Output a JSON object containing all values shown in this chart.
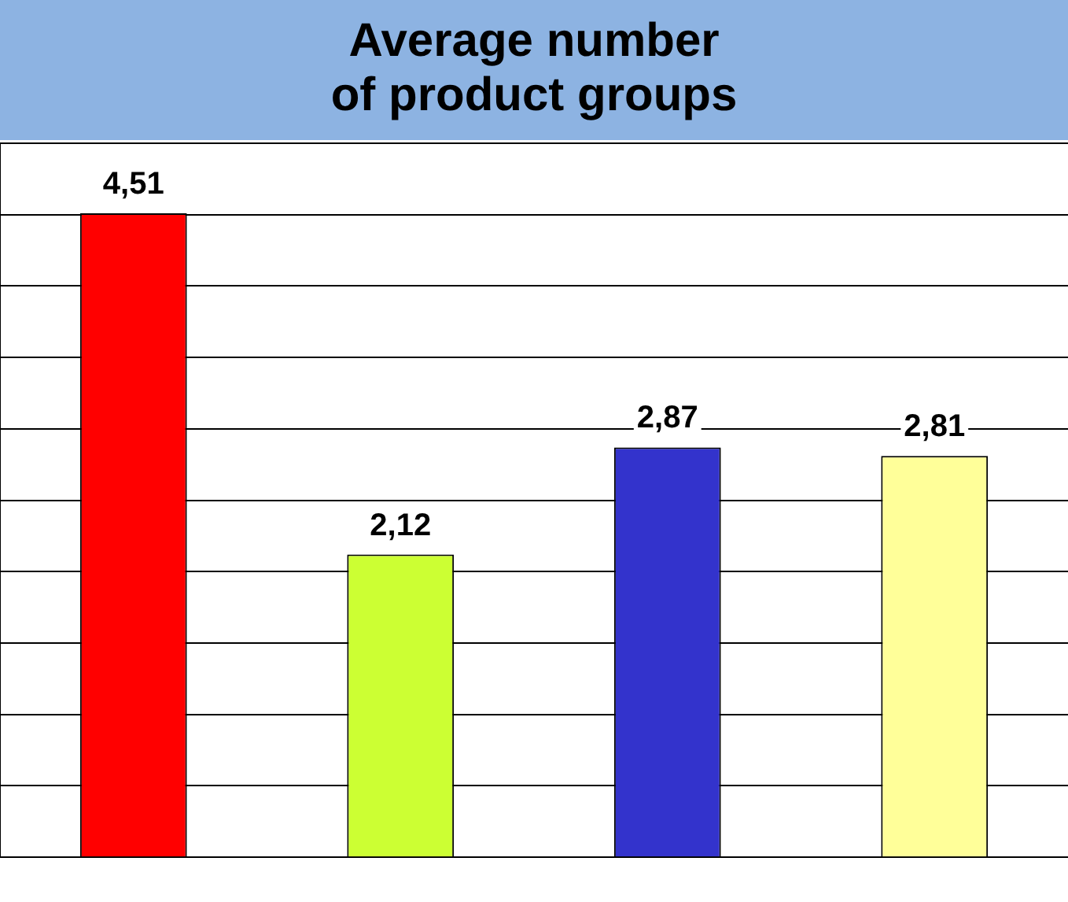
{
  "chart_data": {
    "type": "bar",
    "title": "Average number\nof product groups",
    "categories": [
      null,
      null,
      null,
      null
    ],
    "values": [
      4.51,
      2.12,
      2.87,
      2.81
    ],
    "colors": [
      "#ff0000",
      "#ccff33",
      "#3333cc",
      "#ffff99"
    ],
    "value_labels": [
      "4,51",
      "2,12",
      "2,87",
      "2,81"
    ],
    "grid": "y",
    "legend": false
  }
}
